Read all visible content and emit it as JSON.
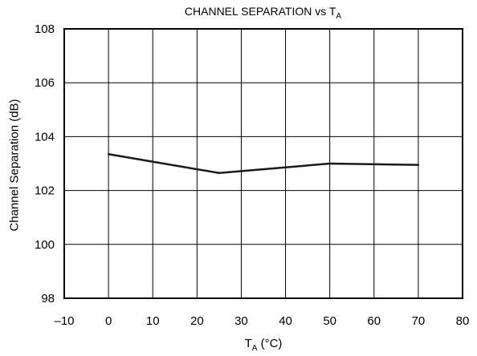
{
  "chart_data": {
    "type": "line",
    "title": "CHANNEL SEPARATION vs T",
    "title_subscript": "A",
    "xlabel_main": "T",
    "xlabel_subscript": "A",
    "xlabel_unit": " (°C)",
    "ylabel": "Channel Separation (dB)",
    "xlim": [
      -10,
      80
    ],
    "ylim": [
      98,
      108
    ],
    "xticks": [
      -10,
      0,
      10,
      20,
      30,
      40,
      50,
      60,
      70,
      80
    ],
    "xtick_labels": [
      "–10",
      "0",
      "10",
      "20",
      "30",
      "40",
      "50",
      "60",
      "70",
      "80"
    ],
    "yticks": [
      98,
      100,
      102,
      104,
      106,
      108
    ],
    "ytick_labels": [
      "98",
      "100",
      "102",
      "104",
      "106",
      "108"
    ],
    "grid": true,
    "series": [
      {
        "x": [
          0,
          25,
          50,
          70
        ],
        "y": [
          103.35,
          102.65,
          103.0,
          102.95
        ],
        "color": "#1a1a1a"
      }
    ]
  }
}
